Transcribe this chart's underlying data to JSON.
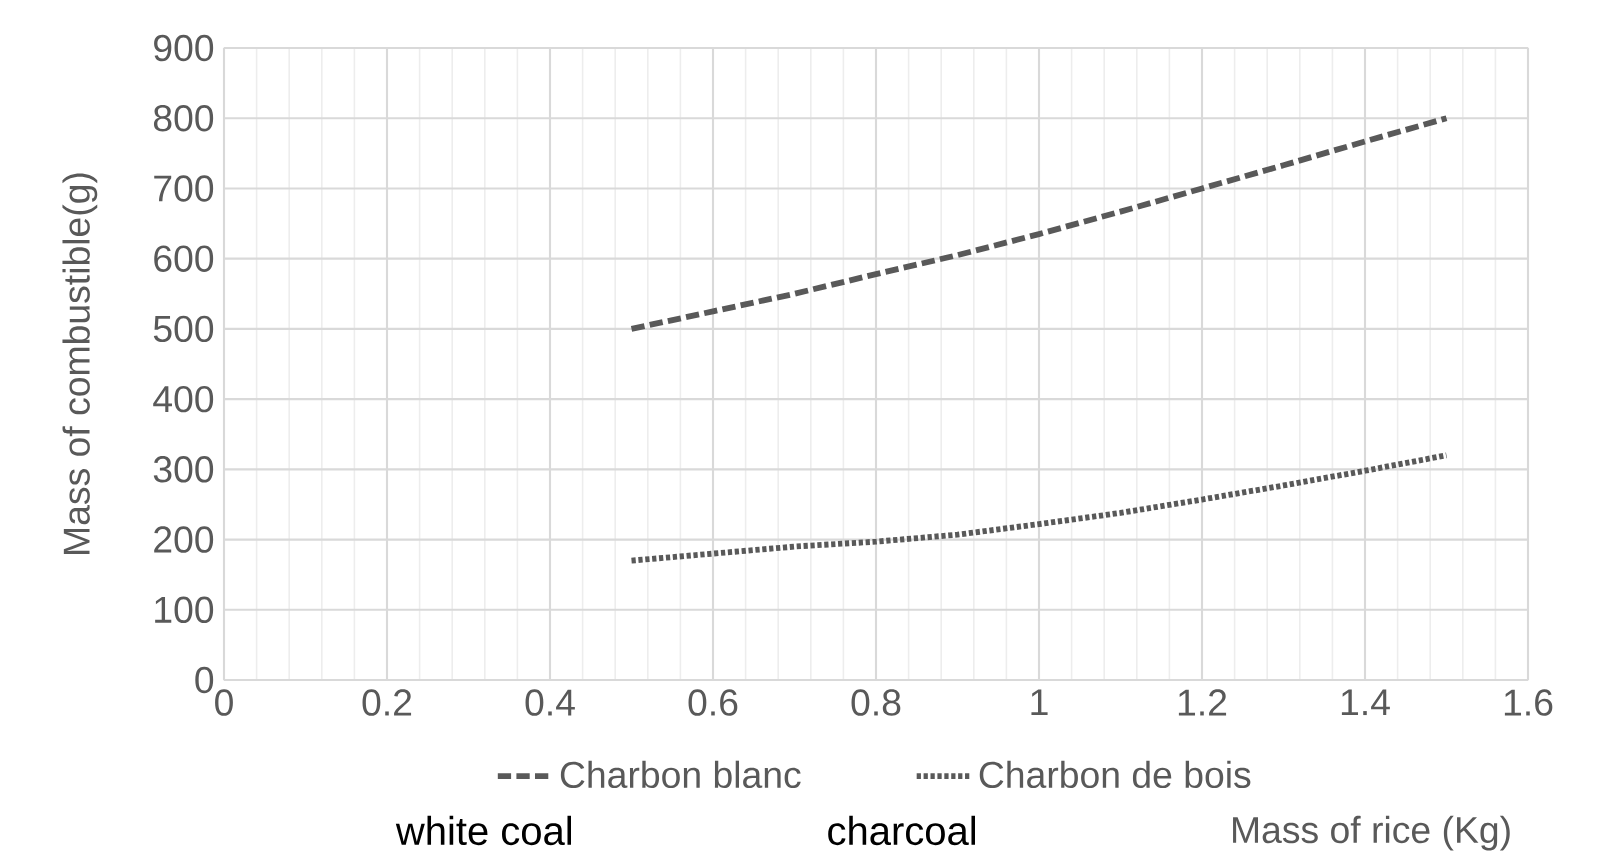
{
  "chart_data": {
    "type": "line",
    "xlabel": "Mass of rice  (Kg)",
    "ylabel": "Mass of combustible(g)",
    "annotations": [
      "white coal",
      "charcoal"
    ],
    "x": [
      0.5,
      0.6,
      0.7,
      0.8,
      0.9,
      1.0,
      1.1,
      1.2,
      1.3,
      1.4,
      1.5
    ],
    "series": [
      {
        "name": "Charbon blanc",
        "color": "#595959",
        "line_style": "dashed",
        "values": [
          500,
          525,
          550,
          578,
          605,
          635,
          667,
          700,
          733,
          767,
          800
        ]
      },
      {
        "name": "Charbon de bois",
        "color": "#595959",
        "line_style": "dotted",
        "values": [
          170,
          180,
          190,
          197,
          207,
          222,
          238,
          257,
          277,
          298,
          320
        ]
      }
    ],
    "xlim": [
      0,
      1.6
    ],
    "xticks": [
      0,
      0.2,
      0.4,
      0.6,
      0.8,
      1,
      1.2,
      1.4,
      1.6
    ],
    "ylim": [
      0,
      900
    ],
    "yticks": [
      0,
      100,
      200,
      300,
      400,
      500,
      600,
      700,
      800,
      900
    ],
    "grid": true,
    "legend": "bottom",
    "marker": "none"
  }
}
